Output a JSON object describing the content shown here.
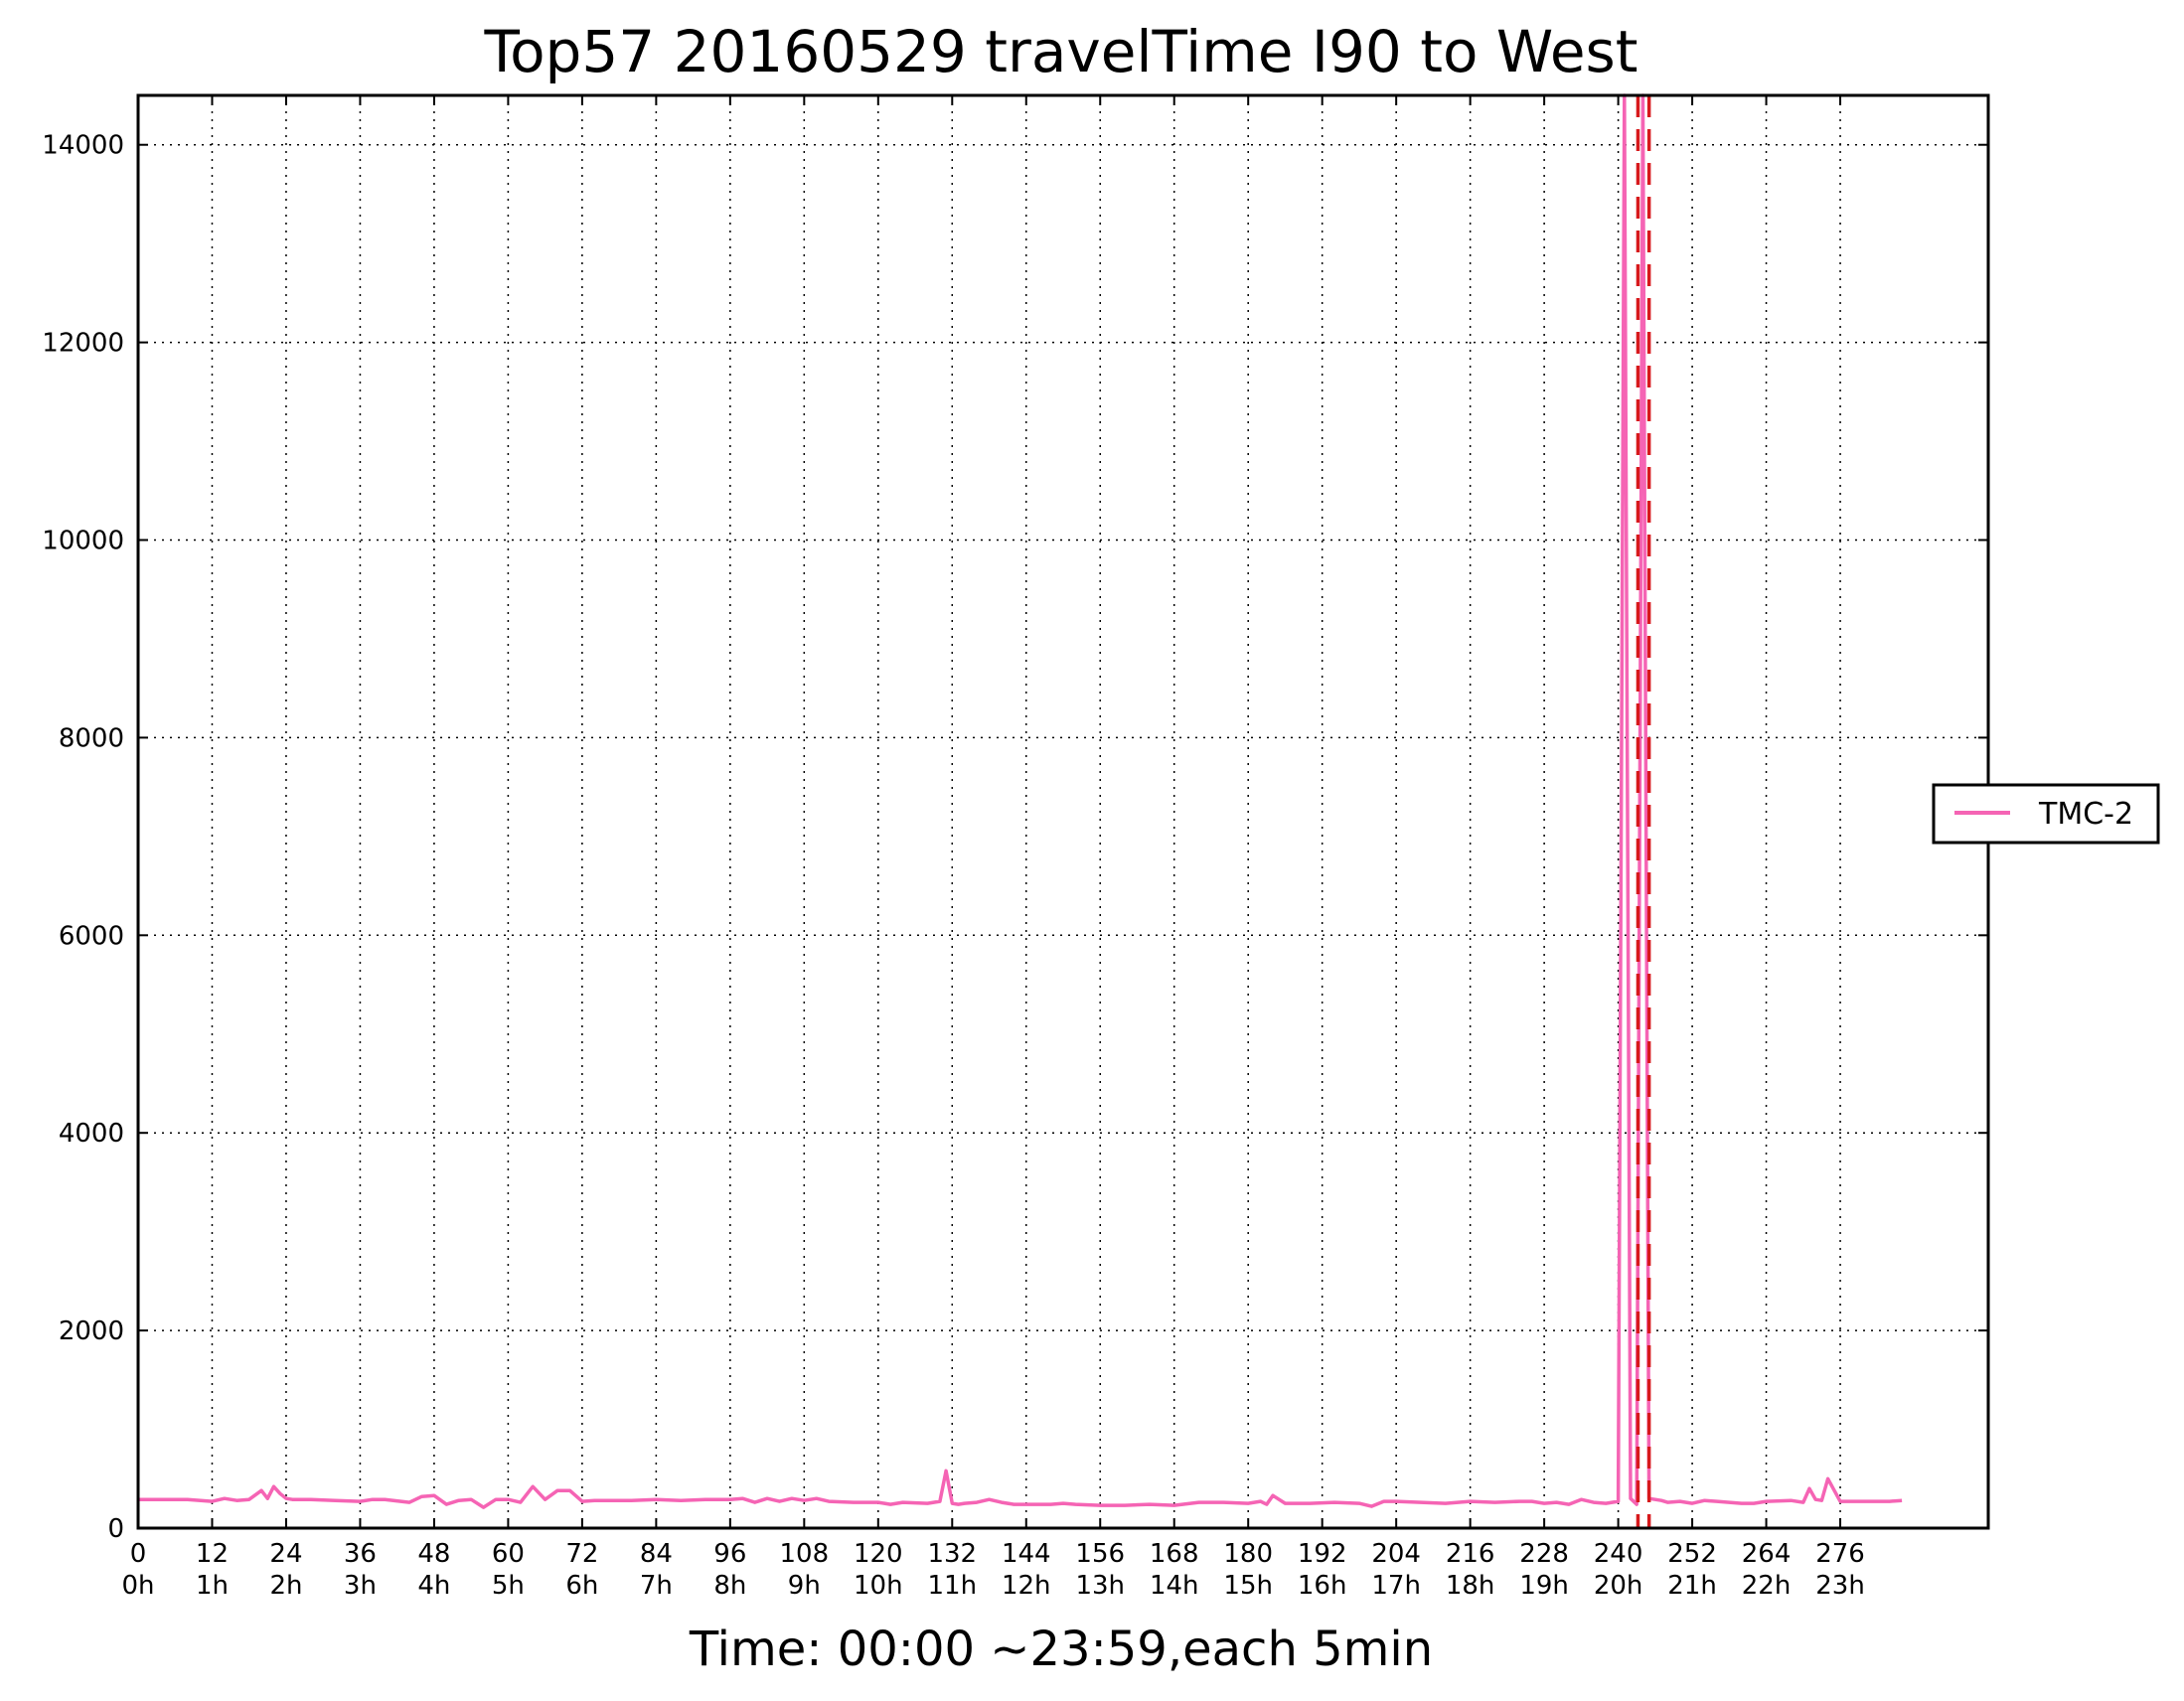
{
  "chart_data": {
    "type": "line",
    "title": "Top57 20160529 travelTime I90 to West",
    "xlabel": "Time: 00:00 ~23:59,each 5min",
    "ylabel": "",
    "xlim": [
      0,
      300
    ],
    "ylim": [
      0,
      14500
    ],
    "grid": true,
    "legend_position": "right",
    "x_ticks": [
      0,
      12,
      24,
      36,
      48,
      60,
      72,
      84,
      96,
      108,
      120,
      132,
      144,
      156,
      168,
      180,
      192,
      204,
      216,
      228,
      240,
      252,
      264,
      276
    ],
    "x_tick_labels": [
      "0",
      "12",
      "24",
      "36",
      "48",
      "60",
      "72",
      "84",
      "96",
      "108",
      "120",
      "132",
      "144",
      "156",
      "168",
      "180",
      "192",
      "204",
      "216",
      "228",
      "240",
      "252",
      "264",
      "276"
    ],
    "x_tick_hours": [
      "0h",
      "1h",
      "2h",
      "3h",
      "4h",
      "5h",
      "6h",
      "7h",
      "8h",
      "9h",
      "10h",
      "11h",
      "12h",
      "13h",
      "14h",
      "15h",
      "16h",
      "17h",
      "18h",
      "19h",
      "20h",
      "21h",
      "22h",
      "23h"
    ],
    "y_ticks": [
      0,
      2000,
      4000,
      6000,
      8000,
      10000,
      12000,
      14000
    ],
    "y_tick_labels": [
      "0",
      "2000",
      "4000",
      "6000",
      "8000",
      "10000",
      "12000",
      "14000"
    ],
    "series": [
      {
        "name": "TMC-2",
        "color": "#f564b4",
        "x": [
          0,
          4,
          8,
          12,
          14,
          16,
          18,
          20,
          21,
          22,
          23,
          24,
          25,
          26,
          28,
          32,
          36,
          38,
          40,
          44,
          46,
          48,
          50,
          52,
          54,
          56,
          58,
          60,
          62,
          64,
          66,
          68,
          70,
          72,
          74,
          76,
          80,
          84,
          88,
          92,
          96,
          98,
          100,
          102,
          104,
          106,
          108,
          110,
          112,
          116,
          120,
          122,
          124,
          128,
          130,
          131,
          132,
          133,
          134,
          136,
          138,
          140,
          142,
          144,
          148,
          150,
          152,
          156,
          160,
          164,
          168,
          172,
          176,
          180,
          182,
          183,
          184,
          186,
          190,
          194,
          198,
          200,
          202,
          204,
          208,
          212,
          216,
          220,
          224,
          226,
          228,
          230,
          232,
          234,
          236,
          238,
          240,
          241,
          242,
          243,
          244,
          245,
          246,
          247,
          248,
          250,
          252,
          254,
          256,
          260,
          262,
          264,
          268,
          270,
          271,
          272,
          273,
          274,
          276,
          280,
          282,
          284,
          286
        ],
        "values": [
          290,
          290,
          290,
          270,
          300,
          280,
          290,
          380,
          300,
          420,
          350,
          300,
          290,
          290,
          290,
          280,
          270,
          290,
          290,
          260,
          320,
          330,
          240,
          280,
          290,
          210,
          290,
          290,
          260,
          420,
          290,
          380,
          380,
          270,
          280,
          280,
          280,
          290,
          280,
          290,
          290,
          300,
          260,
          300,
          270,
          300,
          280,
          300,
          270,
          260,
          260,
          240,
          260,
          250,
          270,
          580,
          250,
          240,
          250,
          260,
          290,
          260,
          240,
          240,
          240,
          250,
          240,
          230,
          230,
          240,
          230,
          260,
          260,
          250,
          270,
          240,
          330,
          250,
          250,
          260,
          250,
          220,
          270,
          270,
          260,
          250,
          270,
          260,
          270,
          270,
          250,
          260,
          240,
          290,
          260,
          250,
          270,
          14500,
          300,
          240,
          14500,
          300,
          290,
          280,
          260,
          270,
          250,
          280,
          270,
          250,
          250,
          270,
          280,
          260,
          400,
          290,
          280,
          500,
          270,
          270,
          270,
          270,
          280
        ]
      }
    ],
    "annotations": [
      {
        "type": "vertical-dashed-line",
        "x": 243.2,
        "color": "#d7191c"
      },
      {
        "type": "vertical-dashed-line",
        "x": 245.0,
        "color": "#d7191c"
      }
    ]
  }
}
